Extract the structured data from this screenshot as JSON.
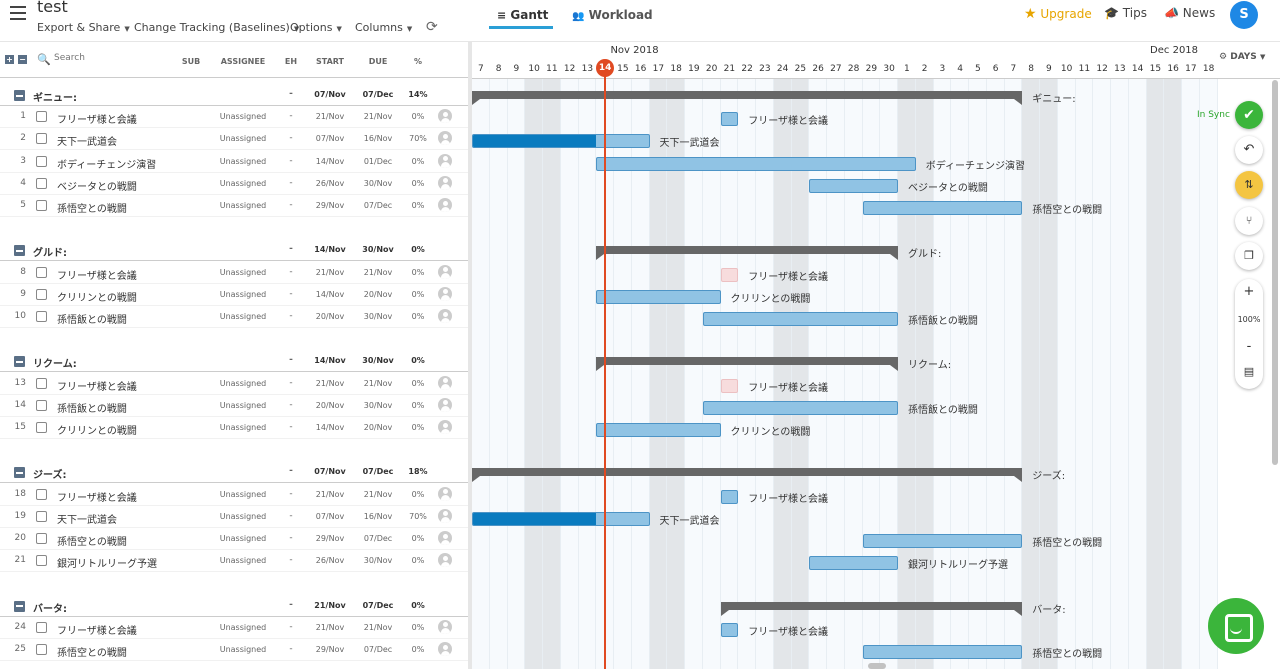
{
  "app": {
    "project_title": "test"
  },
  "topbar": {
    "menus": [
      "Export & Share",
      "Change Tracking (Baselines)",
      "Options",
      "Columns"
    ],
    "views": [
      "Gantt",
      "Workload"
    ],
    "upgrade": "Upgrade",
    "tips": "Tips",
    "news": "News",
    "avatar_initial": "S"
  },
  "grid_header": {
    "search_placeholder": "Search",
    "columns": [
      "SUB",
      "ASSIGNEE",
      "EH",
      "START",
      "DUE",
      "%"
    ]
  },
  "timeline": {
    "months": [
      "Nov 2018",
      "Dec 2018"
    ],
    "days": [
      "7",
      "8",
      "9",
      "10",
      "11",
      "12",
      "13",
      "14",
      "15",
      "16",
      "17",
      "18",
      "19",
      "20",
      "21",
      "22",
      "23",
      "24",
      "25",
      "26",
      "27",
      "28",
      "29",
      "30",
      "1",
      "2",
      "3",
      "4",
      "5",
      "6",
      "7",
      "8",
      "9",
      "10",
      "11",
      "12",
      "13",
      "14",
      "15",
      "16",
      "17",
      "18"
    ],
    "today_index": 7,
    "today_label": "14",
    "weekend_indices": [
      3,
      4,
      10,
      11,
      17,
      18,
      24,
      25,
      31,
      32,
      38,
      39
    ],
    "zoom_unit": "DAYS"
  },
  "rows": [
    {
      "type": "group",
      "name": "ギニュー:",
      "eh": "-",
      "start": "07/Nov",
      "due": "07/Dec",
      "pct": "14%",
      "bar": {
        "start": 0,
        "end": 31,
        "label": "ギニュー:"
      }
    },
    {
      "type": "task",
      "num": "1",
      "name": "フリーザ様と会議",
      "assignee": "Unassigned",
      "eh": "-",
      "start": "21/Nov",
      "due": "21/Nov",
      "pct": "0%",
      "bar": {
        "start": 14,
        "end": 15,
        "progress": 0,
        "label": "フリーザ様と会議"
      }
    },
    {
      "type": "task",
      "num": "2",
      "name": "天下一武道会",
      "assignee": "Unassigned",
      "eh": "-",
      "start": "07/Nov",
      "due": "16/Nov",
      "pct": "70%",
      "bar": {
        "start": 0,
        "end": 10,
        "progress": 0.7,
        "label": "天下一武道会"
      }
    },
    {
      "type": "task",
      "num": "3",
      "name": "ボディーチェンジ演習",
      "assignee": "Unassigned",
      "eh": "-",
      "start": "14/Nov",
      "due": "01/Dec",
      "pct": "0%",
      "bar": {
        "start": 7,
        "end": 25,
        "progress": 0,
        "label": "ボディーチェンジ演習"
      }
    },
    {
      "type": "task",
      "num": "4",
      "name": "ベジータとの戦闘",
      "assignee": "Unassigned",
      "eh": "-",
      "start": "26/Nov",
      "due": "30/Nov",
      "pct": "0%",
      "bar": {
        "start": 19,
        "end": 24,
        "progress": 0,
        "label": "ベジータとの戦闘"
      }
    },
    {
      "type": "task",
      "num": "5",
      "name": "孫悟空との戦闘",
      "assignee": "Unassigned",
      "eh": "-",
      "start": "29/Nov",
      "due": "07/Dec",
      "pct": "0%",
      "bar": {
        "start": 22,
        "end": 31,
        "progress": 0,
        "label": "孫悟空との戦闘"
      }
    },
    {
      "type": "gap"
    },
    {
      "type": "group",
      "name": "グルド:",
      "eh": "-",
      "start": "14/Nov",
      "due": "30/Nov",
      "pct": "0%",
      "bar": {
        "start": 7,
        "end": 24,
        "label": "グルド:"
      }
    },
    {
      "type": "task",
      "num": "8",
      "name": "フリーザ様と会議",
      "assignee": "Unassigned",
      "eh": "-",
      "start": "21/Nov",
      "due": "21/Nov",
      "pct": "0%",
      "bar": {
        "start": 14,
        "end": 15,
        "progress": 0,
        "label": "フリーザ様と会議",
        "pink": true
      }
    },
    {
      "type": "task",
      "num": "9",
      "name": "クリリンとの戦闘",
      "assignee": "Unassigned",
      "eh": "-",
      "start": "14/Nov",
      "due": "20/Nov",
      "pct": "0%",
      "bar": {
        "start": 7,
        "end": 14,
        "progress": 0,
        "label": "クリリンとの戦闘"
      }
    },
    {
      "type": "task",
      "num": "10",
      "name": "孫悟飯との戦闘",
      "assignee": "Unassigned",
      "eh": "-",
      "start": "20/Nov",
      "due": "30/Nov",
      "pct": "0%",
      "bar": {
        "start": 13,
        "end": 24,
        "progress": 0,
        "label": "孫悟飯との戦闘"
      }
    },
    {
      "type": "gap"
    },
    {
      "type": "group",
      "name": "リクーム:",
      "eh": "-",
      "start": "14/Nov",
      "due": "30/Nov",
      "pct": "0%",
      "bar": {
        "start": 7,
        "end": 24,
        "label": "リクーム:"
      }
    },
    {
      "type": "task",
      "num": "13",
      "name": "フリーザ様と会議",
      "assignee": "Unassigned",
      "eh": "-",
      "start": "21/Nov",
      "due": "21/Nov",
      "pct": "0%",
      "bar": {
        "start": 14,
        "end": 15,
        "progress": 0,
        "label": "フリーザ様と会議",
        "pink": true
      }
    },
    {
      "type": "task",
      "num": "14",
      "name": "孫悟飯との戦闘",
      "assignee": "Unassigned",
      "eh": "-",
      "start": "20/Nov",
      "due": "30/Nov",
      "pct": "0%",
      "bar": {
        "start": 13,
        "end": 24,
        "progress": 0,
        "label": "孫悟飯との戦闘"
      }
    },
    {
      "type": "task",
      "num": "15",
      "name": "クリリンとの戦闘",
      "assignee": "Unassigned",
      "eh": "-",
      "start": "14/Nov",
      "due": "20/Nov",
      "pct": "0%",
      "bar": {
        "start": 7,
        "end": 14,
        "progress": 0,
        "label": "クリリンとの戦闘"
      }
    },
    {
      "type": "gap"
    },
    {
      "type": "group",
      "name": "ジーズ:",
      "eh": "-",
      "start": "07/Nov",
      "due": "07/Dec",
      "pct": "18%",
      "bar": {
        "start": 0,
        "end": 31,
        "label": "ジーズ:"
      }
    },
    {
      "type": "task",
      "num": "18",
      "name": "フリーザ様と会議",
      "assignee": "Unassigned",
      "eh": "-",
      "start": "21/Nov",
      "due": "21/Nov",
      "pct": "0%",
      "bar": {
        "start": 14,
        "end": 15,
        "progress": 0,
        "label": "フリーザ様と会議"
      }
    },
    {
      "type": "task",
      "num": "19",
      "name": "天下一武道会",
      "assignee": "Unassigned",
      "eh": "-",
      "start": "07/Nov",
      "due": "16/Nov",
      "pct": "70%",
      "bar": {
        "start": 0,
        "end": 10,
        "progress": 0.7,
        "label": "天下一武道会"
      }
    },
    {
      "type": "task",
      "num": "20",
      "name": "孫悟空との戦闘",
      "assignee": "Unassigned",
      "eh": "-",
      "start": "29/Nov",
      "due": "07/Dec",
      "pct": "0%",
      "bar": {
        "start": 22,
        "end": 31,
        "progress": 0,
        "label": "孫悟空との戦闘"
      }
    },
    {
      "type": "task",
      "num": "21",
      "name": "銀河リトルリーグ予選",
      "assignee": "Unassigned",
      "eh": "-",
      "start": "26/Nov",
      "due": "30/Nov",
      "pct": "0%",
      "bar": {
        "start": 19,
        "end": 24,
        "progress": 0,
        "label": "銀河リトルリーグ予選"
      }
    },
    {
      "type": "gap"
    },
    {
      "type": "group",
      "name": "バータ:",
      "eh": "-",
      "start": "21/Nov",
      "due": "07/Dec",
      "pct": "0%",
      "bar": {
        "start": 14,
        "end": 31,
        "label": "バータ:"
      }
    },
    {
      "type": "task",
      "num": "24",
      "name": "フリーザ様と会議",
      "assignee": "Unassigned",
      "eh": "-",
      "start": "21/Nov",
      "due": "21/Nov",
      "pct": "0%",
      "bar": {
        "start": 14,
        "end": 15,
        "progress": 0,
        "label": "フリーザ様と会議"
      }
    },
    {
      "type": "task",
      "num": "25",
      "name": "孫悟空との戦闘",
      "assignee": "Unassigned",
      "eh": "-",
      "start": "29/Nov",
      "due": "07/Dec",
      "pct": "0%",
      "bar": {
        "start": 22,
        "end": 31,
        "progress": 0,
        "label": "孫悟空との戦闘"
      }
    }
  ],
  "toolbar": {
    "sync_status": "In Sync",
    "zoom_level": "100%",
    "zoom_in": "+",
    "zoom_out": "-"
  }
}
